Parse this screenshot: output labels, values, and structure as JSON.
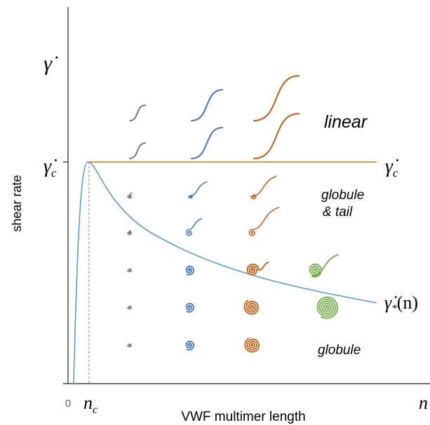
{
  "axes": {
    "y_symbol": "γ̇",
    "y_label": "shear rate",
    "x_label": "VWF multimer length",
    "x_origin": "0",
    "x_symbol": "n"
  },
  "critical_shear_left": {
    "symbol": "γ̇",
    "subscript": "c"
  },
  "critical_shear_right": {
    "symbol": "γ̇",
    "subscript": "c"
  },
  "critical_length": {
    "symbol": "n",
    "subscript": "c"
  },
  "curve_label": {
    "symbol": "γ̇",
    "subscript": "*",
    "argument": "(n)"
  },
  "regions": {
    "linear": "linear",
    "globule_tail": [
      "globule",
      "& tail"
    ],
    "globule": "globule"
  }
}
